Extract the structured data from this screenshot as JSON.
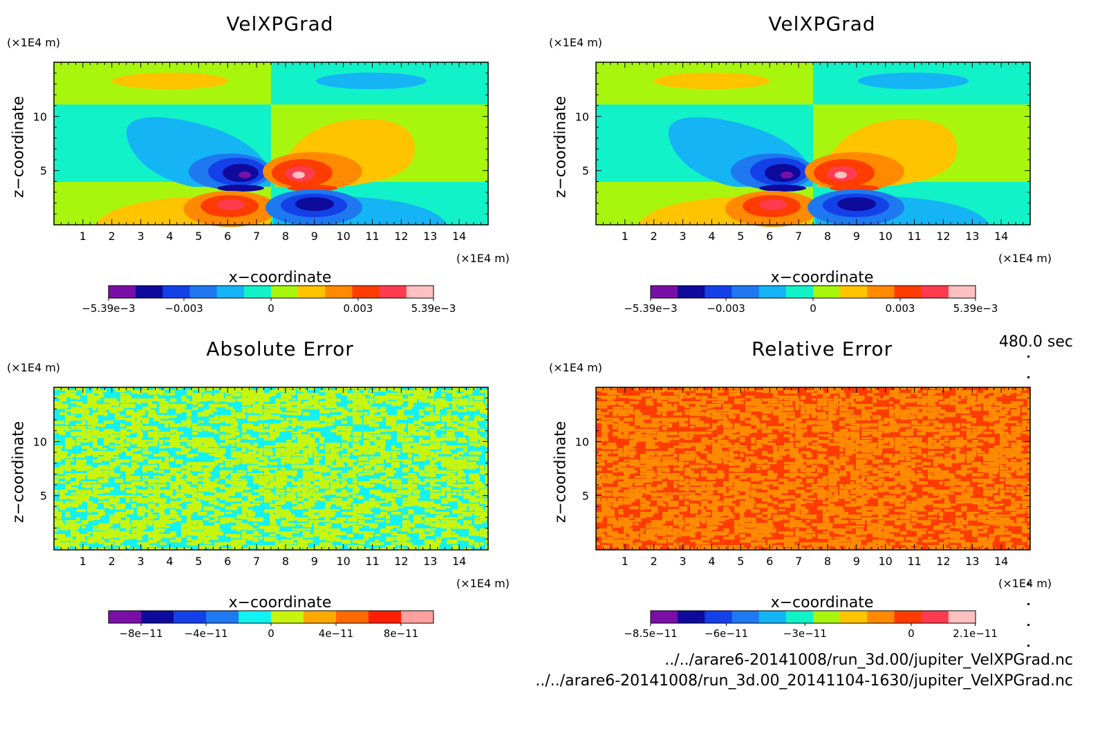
{
  "time_label": "480.0 sec",
  "files": [
    "../../arare6-20141008/run_3d.00/jupiter_VelXPGrad.nc",
    "../../arare6-20141008/run_3d.00_20141104-1630/jupiter_VelXPGrad.nc"
  ],
  "chart_data": [
    {
      "type": "heatmap",
      "title": "VelXPGrad",
      "xlabel": "x−coordinate",
      "ylabel": "z−coordinate",
      "xunit": "(×1E4 m)",
      "yunit": "(×1E4 m)",
      "xlim": [
        0,
        15
      ],
      "ylim": [
        0,
        15
      ],
      "xticks": [
        1,
        2,
        3,
        4,
        5,
        6,
        7,
        8,
        9,
        10,
        11,
        12,
        13,
        14
      ],
      "yticks": [
        5,
        10
      ],
      "pattern": "dipole",
      "colorbar": {
        "colors": [
          "#7a0fa8",
          "#0d0a9c",
          "#1440e8",
          "#1e78f0",
          "#14b4f5",
          "#12f2c8",
          "#a8f50e",
          "#ffc400",
          "#ff8a00",
          "#ff3c00",
          "#ff3b50",
          "#ffc0c0"
        ],
        "labels": [
          "−5.39e−3",
          "−0.003",
          "0",
          "0.003",
          "5.39e−3"
        ],
        "label_positions": [
          0,
          0.232,
          0.5,
          0.768,
          1
        ]
      }
    },
    {
      "type": "heatmap",
      "title": "VelXPGrad",
      "xlabel": "x−coordinate",
      "ylabel": "z−coordinate",
      "xunit": "(×1E4 m)",
      "yunit": "(×1E4 m)",
      "xlim": [
        0,
        15
      ],
      "ylim": [
        0,
        15
      ],
      "xticks": [
        1,
        2,
        3,
        4,
        5,
        6,
        7,
        8,
        9,
        10,
        11,
        12,
        13,
        14
      ],
      "yticks": [
        5,
        10
      ],
      "pattern": "dipole",
      "colorbar": {
        "colors": [
          "#7a0fa8",
          "#0d0a9c",
          "#1440e8",
          "#1e78f0",
          "#14b4f5",
          "#12f2c8",
          "#a8f50e",
          "#ffc400",
          "#ff8a00",
          "#ff3c00",
          "#ff3b50",
          "#ffc0c0"
        ],
        "labels": [
          "−5.39e−3",
          "−0.003",
          "0",
          "0.003",
          "5.39e−3"
        ],
        "label_positions": [
          0,
          0.232,
          0.5,
          0.768,
          1
        ]
      }
    },
    {
      "type": "heatmap",
      "title": "Absolute Error",
      "xlabel": "x−coordinate",
      "ylabel": "z−coordinate",
      "xunit": "(×1E4 m)",
      "yunit": "(×1E4 m)",
      "xlim": [
        0,
        15
      ],
      "ylim": [
        0,
        15
      ],
      "xticks": [
        1,
        2,
        3,
        4,
        5,
        6,
        7,
        8,
        9,
        10,
        11,
        12,
        13,
        14
      ],
      "yticks": [
        5,
        10
      ],
      "pattern": "noise",
      "noise_colors": [
        "#12f2f2",
        "#c8f50e"
      ],
      "colorbar": {
        "colors": [
          "#7a0fa8",
          "#0d0a9c",
          "#1440e8",
          "#1e78f0",
          "#12f2f2",
          "#c8f50e",
          "#ffa800",
          "#ff6a00",
          "#ff1e00",
          "#ffa0a0"
        ],
        "labels": [
          "−8e−11",
          "−4e−11",
          "0",
          "4e−11",
          "8e−11"
        ],
        "label_positions": [
          0.1,
          0.3,
          0.5,
          0.7,
          0.9
        ]
      }
    },
    {
      "type": "heatmap",
      "title": "Relative Error",
      "xlabel": "x−coordinate",
      "ylabel": "z−coordinate",
      "xunit": "(×1E4 m)",
      "yunit": "(×1E4 m)",
      "xlim": [
        0,
        15
      ],
      "ylim": [
        0,
        15
      ],
      "xticks": [
        1,
        2,
        3,
        4,
        5,
        6,
        7,
        8,
        9,
        10,
        11,
        12,
        13,
        14
      ],
      "yticks": [
        5,
        10
      ],
      "pattern": "noise",
      "noise_colors": [
        "#ff3c00",
        "#ff8a00"
      ],
      "colorbar": {
        "colors": [
          "#7a0fa8",
          "#0d0a9c",
          "#1440e8",
          "#1e78f0",
          "#14b4f5",
          "#12f2c8",
          "#a8f50e",
          "#ffc400",
          "#ff8a00",
          "#ff3c00",
          "#ff3b50",
          "#ffc0c0"
        ],
        "labels": [
          "−8.5e−11",
          "−6e−11",
          "−3e−11",
          "0",
          "2.1e−11"
        ],
        "label_positions": [
          0,
          0.233,
          0.475,
          0.802,
          0.999
        ]
      }
    }
  ]
}
